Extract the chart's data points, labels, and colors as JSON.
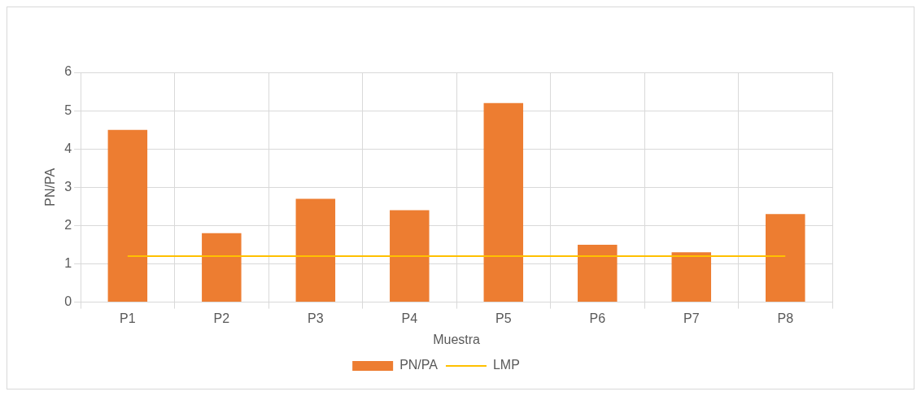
{
  "chart_data": {
    "type": "bar",
    "xlabel": "Muestra",
    "ylabel": "PN/PA",
    "categories": [
      "P1",
      "P2",
      "P3",
      "P4",
      "P5",
      "P6",
      "P7",
      "P8"
    ],
    "series": [
      {
        "name": "PN/PA",
        "color": "#ed7d31",
        "values": [
          4.5,
          1.8,
          2.7,
          2.4,
          5.2,
          1.5,
          1.3,
          2.3
        ]
      },
      {
        "name": "LMP",
        "type": "line",
        "color": "#ffc000",
        "values": [
          1.2,
          1.2,
          1.2,
          1.2,
          1.2,
          1.2,
          1.2,
          1.2
        ]
      }
    ],
    "ylim": [
      0,
      6
    ],
    "yticks": [
      0,
      1,
      2,
      3,
      4,
      5,
      6
    ],
    "grid": true,
    "legend": "bottom",
    "marker": "none"
  }
}
